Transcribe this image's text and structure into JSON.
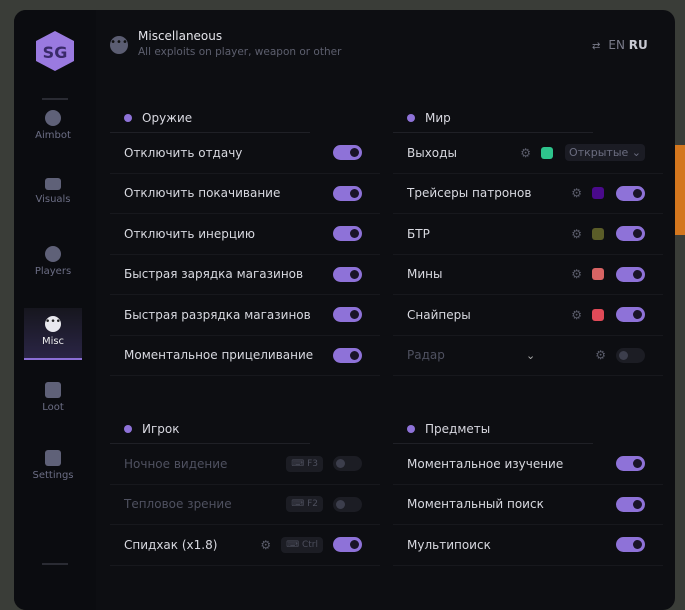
{
  "header": {
    "title": "Miscellaneous",
    "subtitle": "All exploits on player, weapon or other",
    "lang_en": "EN",
    "lang_ru": "RU"
  },
  "sidebar": {
    "items": [
      {
        "label": "Aimbot",
        "icon": "alien-icon"
      },
      {
        "label": "Visuals",
        "icon": "vr-headset-icon"
      },
      {
        "label": "Players",
        "icon": "users-icon"
      },
      {
        "label": "Misc",
        "icon": "dots-icon",
        "active": true
      },
      {
        "label": "Loot",
        "icon": "briefcase-icon"
      },
      {
        "label": "Settings",
        "icon": "list-icon"
      }
    ]
  },
  "weapon": {
    "title": "Оружие",
    "rows": [
      {
        "label": "Отключить отдачу",
        "on": true
      },
      {
        "label": "Отключить покачивание",
        "on": true
      },
      {
        "label": "Отключить инерцию",
        "on": true
      },
      {
        "label": "Быстрая зарядка магазинов",
        "on": true
      },
      {
        "label": "Быстрая разрядка магазинов",
        "on": true
      },
      {
        "label": "Моментальное прицеливание",
        "on": true
      }
    ]
  },
  "world": {
    "title": "Мир",
    "rows": [
      {
        "label": "Выходы",
        "color": "#2ec48c",
        "select": "Открытые"
      },
      {
        "label": "Трейсеры патронов",
        "color": "#4a0a8c",
        "on": true
      },
      {
        "label": "БТР",
        "color": "#5a5c28",
        "on": true
      },
      {
        "label": "Мины",
        "color": "#d86464",
        "on": true
      },
      {
        "label": "Снайперы",
        "color": "#e04a58",
        "on": true
      },
      {
        "label": "Радар",
        "on": false
      }
    ]
  },
  "player": {
    "title": "Игрок",
    "rows": [
      {
        "label": "Ночное видение",
        "key": "F3",
        "on": false
      },
      {
        "label": "Тепловое зрение",
        "key": "F2",
        "on": false
      },
      {
        "label": "Спидхак (x1.8)",
        "key": "Ctrl",
        "on": true
      }
    ]
  },
  "items": {
    "title": "Предметы",
    "rows": [
      {
        "label": "Моментальное изучение",
        "on": true
      },
      {
        "label": "Моментальный поиск",
        "on": true
      },
      {
        "label": "Мультипоиск",
        "on": true
      }
    ]
  }
}
